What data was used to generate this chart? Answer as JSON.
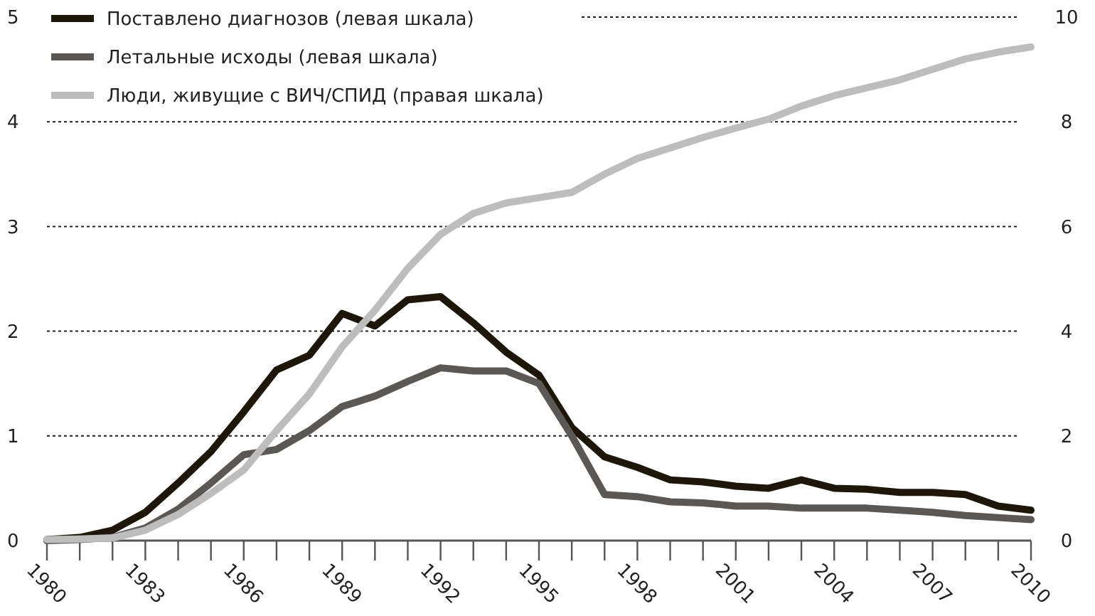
{
  "chart_data": {
    "type": "line",
    "x": [
      1980,
      1981,
      1982,
      1983,
      1984,
      1985,
      1986,
      1987,
      1988,
      1989,
      1990,
      1991,
      1992,
      1993,
      1994,
      1995,
      1996,
      1997,
      1998,
      1999,
      2000,
      2001,
      2002,
      2003,
      2004,
      2005,
      2006,
      2007,
      2008,
      2009,
      2010
    ],
    "series": [
      {
        "name": "Поставлено диагнозов (левая шкала)",
        "color": "#1e1608",
        "values": [
          0.01,
          0.03,
          0.1,
          0.27,
          0.55,
          0.85,
          1.23,
          1.63,
          1.77,
          2.17,
          2.05,
          2.3,
          2.33,
          2.08,
          1.8,
          1.58,
          1.08,
          0.8,
          0.7,
          0.58,
          0.56,
          0.52,
          0.5,
          0.58,
          0.5,
          0.49,
          0.46,
          0.46,
          0.44,
          0.33,
          0.29
        ]
      },
      {
        "name": "Летальные исходы (левая шкала)",
        "color": "#5a5755",
        "values": [
          0,
          0.01,
          0.03,
          0.12,
          0.3,
          0.55,
          0.82,
          0.87,
          1.05,
          1.28,
          1.38,
          1.52,
          1.65,
          1.62,
          1.62,
          1.5,
          1.0,
          0.44,
          0.42,
          0.37,
          0.36,
          0.33,
          0.33,
          0.31,
          0.31,
          0.31,
          0.29,
          0.27,
          0.24,
          0.22,
          0.2
        ]
      },
      {
        "name": "Люди, живущие с ВИЧ/СПИД (правая шкала)",
        "color": "#bdbdbd",
        "axis": "y2",
        "values": [
          0.02,
          0.03,
          0.05,
          0.2,
          0.5,
          0.9,
          1.35,
          2.1,
          2.8,
          3.7,
          4.4,
          5.2,
          5.85,
          6.25,
          6.45,
          6.55,
          6.65,
          7.0,
          7.3,
          7.5,
          7.7,
          7.88,
          8.05,
          8.3,
          8.5,
          8.65,
          8.8,
          9.0,
          9.2,
          9.33,
          9.43
        ]
      }
    ],
    "xlim": [
      1980,
      2010
    ],
    "xticks": [
      1980,
      {
        "value": 1981,
        "label": null
      },
      {
        "value": 1982,
        "label": null
      },
      1983,
      {
        "value": 1984,
        "label": null
      },
      {
        "value": 1985,
        "label": null
      },
      1986,
      {
        "value": 1987,
        "label": null
      },
      {
        "value": 1988,
        "label": null
      },
      1989,
      {
        "value": 1990,
        "label": null
      },
      {
        "value": 1991,
        "label": null
      },
      1992,
      {
        "value": 1993,
        "label": null
      },
      {
        "value": 1994,
        "label": null
      },
      1995,
      {
        "value": 1996,
        "label": null
      },
      {
        "value": 1997,
        "label": null
      },
      1998,
      {
        "value": 1999,
        "label": null
      },
      {
        "value": 2000,
        "label": null
      },
      2001,
      {
        "value": 2002,
        "label": null
      },
      {
        "value": 2003,
        "label": null
      },
      2004,
      {
        "value": 2005,
        "label": null
      },
      {
        "value": 2006,
        "label": null
      },
      2007,
      {
        "value": 2008,
        "label": null
      },
      {
        "value": 2009,
        "label": null
      },
      2010
    ],
    "ylim": [
      0,
      5
    ],
    "yticks": [
      0,
      1,
      2,
      3,
      4,
      5
    ],
    "y2lim": [
      0,
      10
    ],
    "y2ticks": [
      0,
      2,
      4,
      6,
      8,
      10
    ],
    "grid": "y",
    "legend": "top left",
    "marker": "none",
    "line_style": "solid"
  }
}
